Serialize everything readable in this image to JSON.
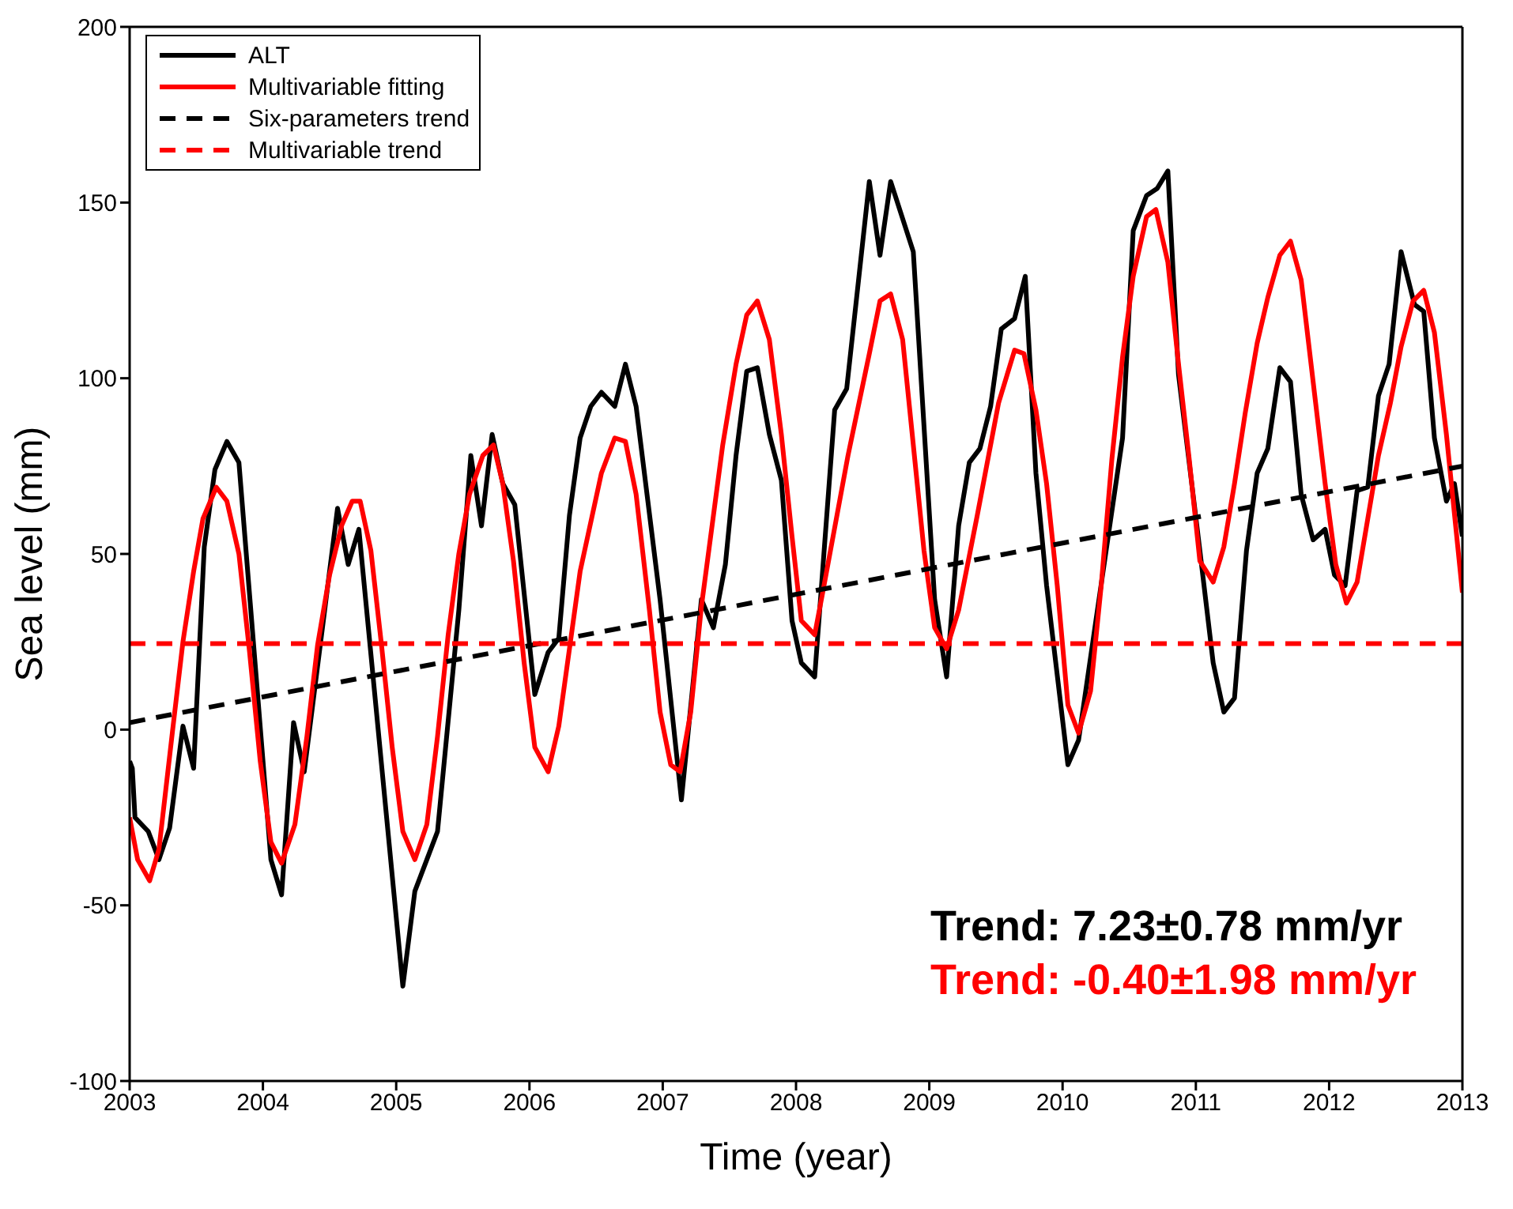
{
  "chart_data": {
    "type": "line",
    "xlabel": "Time (year)",
    "ylabel": "Sea level (mm)",
    "xlim": [
      2003,
      2013
    ],
    "xticks": [
      2003,
      2004,
      2005,
      2006,
      2007,
      2008,
      2009,
      2010,
      2011,
      2012,
      2013
    ],
    "ylim": [
      -100,
      200
    ],
    "yticks": [
      -100,
      -50,
      0,
      50,
      100,
      150,
      200
    ],
    "legend": "top left",
    "marker": "none",
    "series": [
      {
        "name": "ALT",
        "color": "#000000",
        "line_style": "solid",
        "x": [
          2003.0,
          2003.02,
          2003.04,
          2003.14,
          2003.22,
          2003.3,
          2003.4,
          2003.48,
          2003.56,
          2003.64,
          2003.73,
          2003.82,
          2004.06,
          2004.14,
          2004.23,
          2004.31,
          2004.56,
          2004.64,
          2004.72,
          2005.05,
          2005.14,
          2005.23,
          2005.31,
          2005.47,
          2005.56,
          2005.64,
          2005.72,
          2005.8,
          2005.89,
          2006.04,
          2006.14,
          2006.22,
          2006.3,
          2006.38,
          2006.46,
          2006.54,
          2006.64,
          2006.72,
          2006.8,
          2006.98,
          2007.14,
          2007.29,
          2007.38,
          2007.47,
          2007.55,
          2007.63,
          2007.71,
          2007.8,
          2007.89,
          2007.97,
          2008.04,
          2008.14,
          2008.29,
          2008.38,
          2008.55,
          2008.63,
          2008.71,
          2008.88,
          2009.04,
          2009.13,
          2009.22,
          2009.3,
          2009.38,
          2009.46,
          2009.54,
          2009.64,
          2009.72,
          2009.8,
          2009.88,
          2010.04,
          2010.12,
          2010.25,
          2010.45,
          2010.53,
          2010.63,
          2010.71,
          2010.79,
          2010.87,
          2011.03,
          2011.13,
          2011.21,
          2011.29,
          2011.38,
          2011.46,
          2011.54,
          2011.63,
          2011.71,
          2011.79,
          2011.88,
          2011.97,
          2012.04,
          2012.12,
          2012.21,
          2012.29,
          2012.37,
          2012.45,
          2012.54,
          2012.64,
          2012.71,
          2012.79,
          2012.88,
          2012.94,
          2013.0
        ],
        "values": [
          -9,
          -11,
          -25,
          -29,
          -37,
          -28,
          1,
          -11,
          52,
          74,
          82,
          76,
          -37,
          -47,
          2,
          -12,
          63,
          47,
          57,
          -73,
          -46,
          -37,
          -29,
          34,
          78,
          58,
          84,
          70,
          64,
          10,
          22,
          26,
          61,
          83,
          92,
          96,
          92,
          104,
          92,
          37,
          -20,
          37,
          29,
          47,
          78,
          102,
          103,
          84,
          71,
          31,
          19,
          15,
          91,
          97,
          156,
          135,
          156,
          136,
          37,
          15,
          58,
          76,
          80,
          92,
          114,
          117,
          129,
          73,
          41,
          -10,
          -3,
          31,
          83,
          142,
          152,
          154,
          159,
          101,
          51,
          19,
          5,
          9,
          51,
          73,
          80,
          103,
          99,
          67,
          54,
          57,
          44,
          41,
          68,
          69,
          95,
          104,
          136,
          121,
          119,
          83,
          65,
          70,
          55
        ]
      },
      {
        "name": "Multivariable fitting",
        "color": "#ff0000",
        "line_style": "solid",
        "x": [
          2003.0,
          2003.06,
          2003.15,
          2003.22,
          2003.32,
          2003.4,
          2003.48,
          2003.55,
          2003.65,
          2003.73,
          2003.82,
          2003.9,
          2003.98,
          2004.06,
          2004.14,
          2004.24,
          2004.33,
          2004.41,
          2004.5,
          2004.59,
          2004.67,
          2004.73,
          2004.81,
          2004.89,
          2004.97,
          2005.05,
          2005.14,
          2005.23,
          2005.31,
          2005.39,
          2005.47,
          2005.55,
          2005.65,
          2005.73,
          2005.8,
          2005.88,
          2005.96,
          2006.04,
          2006.14,
          2006.22,
          2006.38,
          2006.54,
          2006.64,
          2006.72,
          2006.8,
          2006.9,
          2006.98,
          2007.06,
          2007.13,
          2007.21,
          2007.29,
          2007.45,
          2007.55,
          2007.63,
          2007.71,
          2007.8,
          2007.89,
          2007.97,
          2008.04,
          2008.14,
          2008.21,
          2008.39,
          2008.55,
          2008.63,
          2008.71,
          2008.8,
          2008.88,
          2008.96,
          2009.04,
          2009.13,
          2009.22,
          2009.36,
          2009.52,
          2009.64,
          2009.71,
          2009.8,
          2009.88,
          2009.96,
          2010.04,
          2010.12,
          2010.21,
          2010.29,
          2010.37,
          2010.45,
          2010.53,
          2010.63,
          2010.7,
          2010.79,
          2010.87,
          2010.95,
          2011.03,
          2011.13,
          2011.21,
          2011.29,
          2011.37,
          2011.46,
          2011.54,
          2011.63,
          2011.71,
          2011.79,
          2011.88,
          2011.97,
          2012.05,
          2012.13,
          2012.21,
          2012.29,
          2012.37,
          2012.46,
          2012.54,
          2012.63,
          2012.71,
          2012.79,
          2012.88,
          2013.0
        ],
        "values": [
          -25,
          -37,
          -43,
          -34,
          -1,
          25,
          45,
          60,
          69,
          65,
          50,
          22,
          -9,
          -32,
          -38,
          -27,
          -2,
          24,
          44,
          58,
          65,
          65,
          51,
          24,
          -5,
          -29,
          -37,
          -27,
          -2,
          27,
          50,
          67,
          78,
          81,
          70,
          48,
          19,
          -5,
          -12,
          1,
          45,
          73,
          83,
          82,
          67,
          34,
          5,
          -10,
          -12,
          5,
          35,
          81,
          104,
          118,
          122,
          111,
          84,
          55,
          31,
          27,
          41,
          78,
          107,
          122,
          124,
          111,
          81,
          51,
          29,
          23,
          34,
          61,
          93,
          108,
          107,
          91,
          70,
          41,
          7,
          -1,
          11,
          41,
          77,
          106,
          129,
          146,
          148,
          133,
          104,
          77,
          48,
          42,
          52,
          70,
          90,
          110,
          123,
          135,
          139,
          128,
          99,
          70,
          47,
          36,
          42,
          60,
          78,
          93,
          109,
          122,
          125,
          113,
          84,
          39
        ]
      },
      {
        "name": "Six-parameters trend",
        "color": "#000000",
        "line_style": "dashed",
        "x": [
          2003,
          2013
        ],
        "values": [
          2,
          75
        ]
      },
      {
        "name": "Multivariable trend",
        "color": "#ff0000",
        "line_style": "dashed",
        "x": [
          2003,
          2013
        ],
        "values": [
          24.5,
          24.5
        ]
      }
    ],
    "annotations": [
      "Trend: 7.23±0.78 mm/yr",
      "Trend: -0.40±1.98 mm/yr"
    ]
  }
}
